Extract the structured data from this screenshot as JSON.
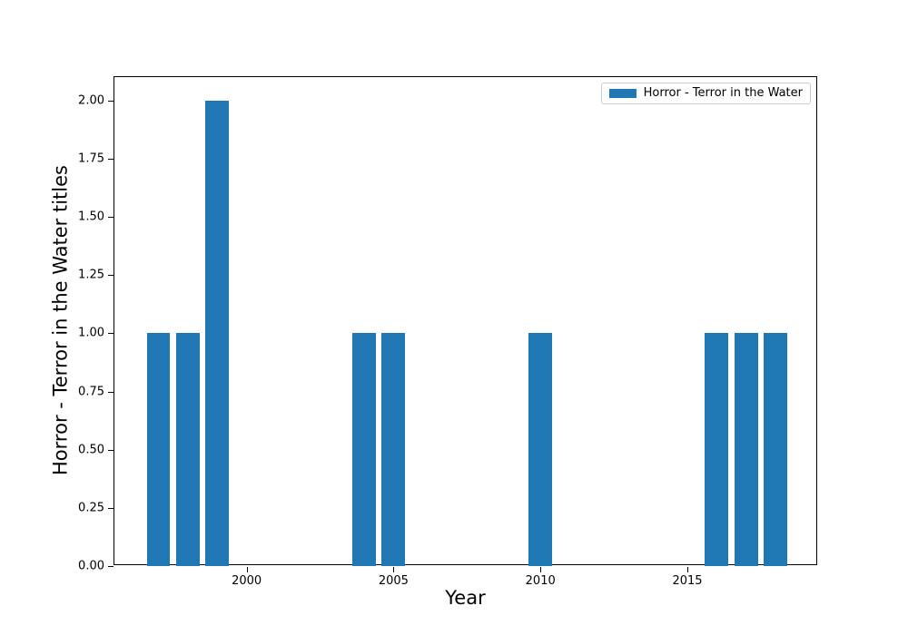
{
  "figure": {
    "background": "#ffffff"
  },
  "chart_data": {
    "type": "bar",
    "title": "",
    "xlabel": "Year",
    "ylabel": "Horror - Terror in the Water titles",
    "legend_label": "Horror - Terror in the Water",
    "legend_position": "upper right",
    "bar_color": "#1f77b4",
    "axis_color": "#000000",
    "grid": false,
    "x": [
      1997,
      1998,
      1999,
      2004,
      2005,
      2010,
      2016,
      2017,
      2018
    ],
    "values": [
      1,
      1,
      2,
      1,
      1,
      1,
      1,
      1,
      1
    ],
    "bar_width_years": 0.8,
    "xlim": [
      1995.5,
      2019.45
    ],
    "ylim": [
      0,
      2.1
    ],
    "xticks": [
      2000,
      2005,
      2010,
      2015
    ],
    "xtick_labels": [
      "2000",
      "2005",
      "2010",
      "2015"
    ],
    "yticks": [
      0,
      0.25,
      0.5,
      0.75,
      1.0,
      1.25,
      1.5,
      1.75,
      2.0
    ],
    "ytick_labels": [
      "0.00",
      "0.25",
      "0.50",
      "0.75",
      "1.00",
      "1.25",
      "1.50",
      "1.75",
      "2.00"
    ]
  }
}
